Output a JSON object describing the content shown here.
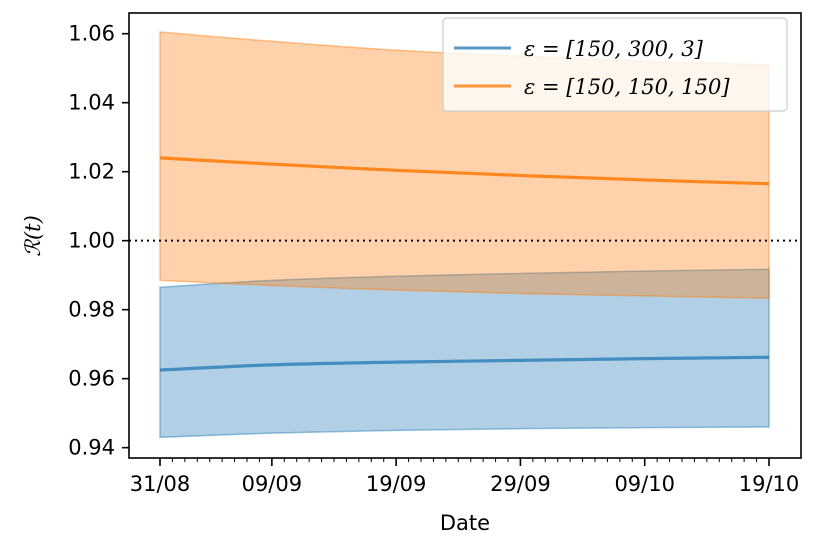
{
  "chart_data": {
    "type": "area",
    "title": "",
    "xlabel": "Date",
    "ylabel": "ℛ(t)",
    "x_ticks": [
      "31/08",
      "09/09",
      "19/09",
      "29/09",
      "09/10",
      "19/10"
    ],
    "x_range": [
      "31/08",
      "19/10"
    ],
    "ylim": [
      0.937,
      1.066
    ],
    "y_ticks": [
      "0.94",
      "0.96",
      "0.98",
      "1.00",
      "1.02",
      "1.04",
      "1.06"
    ],
    "reference_line": {
      "y": 1.0,
      "style": "dotted"
    },
    "grid": false,
    "legend_position": "upper right",
    "series": [
      {
        "name": "ε = [150, 300, 3]",
        "color": "#1f77b4",
        "x": [
          "31/08",
          "09/09",
          "19/09",
          "29/09",
          "09/10",
          "19/10"
        ],
        "mean": [
          0.9625,
          0.964,
          0.9648,
          0.9653,
          0.9658,
          0.9662
        ],
        "lower": [
          0.943,
          0.9442,
          0.945,
          0.9455,
          0.9458,
          0.946
        ],
        "upper": [
          0.9865,
          0.9885,
          0.9897,
          0.9905,
          0.9912,
          0.9917
        ]
      },
      {
        "name": "ε = [150, 150, 150]",
        "color": "#ff7f0e",
        "x": [
          "31/08",
          "09/09",
          "19/09",
          "29/09",
          "09/10",
          "19/10"
        ],
        "mean": [
          1.024,
          1.0222,
          1.0204,
          1.0189,
          1.0176,
          1.0165
        ],
        "lower": [
          0.9885,
          0.987,
          0.9857,
          0.9847,
          0.984,
          0.9833
        ],
        "upper": [
          1.0605,
          1.0578,
          1.0552,
          1.0535,
          1.052,
          1.051
        ]
      }
    ]
  }
}
